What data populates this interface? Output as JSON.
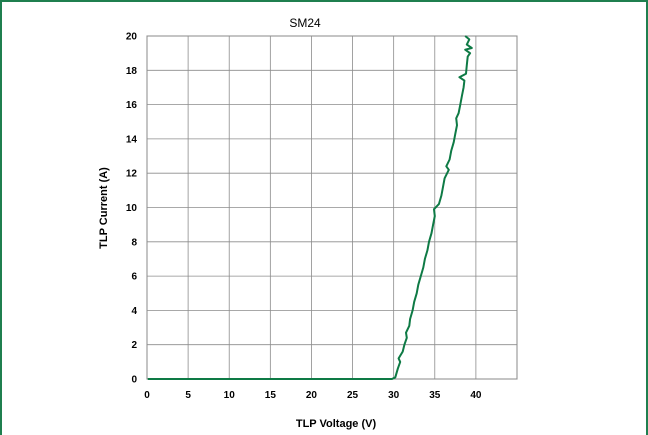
{
  "chart_data": {
    "type": "line",
    "title": "SM24",
    "xlabel": "TLP Voltage (V)",
    "ylabel": "TLP Current (A)",
    "xlim": [
      0,
      45
    ],
    "ylim": [
      0,
      20
    ],
    "xticks": [
      0,
      5,
      10,
      15,
      20,
      25,
      30,
      35,
      40
    ],
    "yticks": [
      0,
      2,
      4,
      6,
      8,
      10,
      12,
      14,
      16,
      18,
      20
    ],
    "grid": true,
    "legend": "none",
    "series": [
      {
        "color": "#0e7a45",
        "points": [
          [
            0.1,
            0.0
          ],
          [
            10,
            0.0
          ],
          [
            20,
            0.0
          ],
          [
            29.8,
            0.0
          ],
          [
            30.2,
            0.1
          ],
          [
            30.5,
            0.6
          ],
          [
            30.8,
            1.0
          ],
          [
            30.6,
            1.2
          ],
          [
            31.1,
            1.6
          ],
          [
            31.3,
            2.0
          ],
          [
            31.6,
            2.4
          ],
          [
            31.5,
            2.7
          ],
          [
            31.9,
            3.1
          ],
          [
            32.0,
            3.5
          ],
          [
            32.3,
            4.0
          ],
          [
            32.5,
            4.5
          ],
          [
            32.8,
            5.0
          ],
          [
            33.0,
            5.5
          ],
          [
            33.3,
            6.0
          ],
          [
            33.6,
            6.5
          ],
          [
            33.8,
            7.0
          ],
          [
            34.1,
            7.5
          ],
          [
            34.3,
            8.0
          ],
          [
            34.6,
            8.5
          ],
          [
            34.8,
            9.0
          ],
          [
            35.0,
            9.5
          ],
          [
            34.9,
            9.9
          ],
          [
            35.5,
            10.2
          ],
          [
            35.8,
            10.7
          ],
          [
            36.0,
            11.2
          ],
          [
            36.2,
            11.7
          ],
          [
            36.7,
            12.2
          ],
          [
            36.4,
            12.4
          ],
          [
            36.8,
            12.8
          ],
          [
            37.0,
            13.3
          ],
          [
            37.3,
            13.8
          ],
          [
            37.5,
            14.3
          ],
          [
            37.7,
            14.8
          ],
          [
            37.6,
            15.2
          ],
          [
            37.9,
            15.5
          ],
          [
            38.1,
            16.0
          ],
          [
            38.3,
            16.5
          ],
          [
            38.5,
            17.0
          ],
          [
            38.6,
            17.4
          ],
          [
            38.0,
            17.6
          ],
          [
            38.8,
            17.8
          ],
          [
            38.9,
            18.3
          ],
          [
            39.0,
            18.8
          ],
          [
            39.3,
            19.0
          ],
          [
            38.7,
            19.2
          ],
          [
            39.5,
            19.3
          ],
          [
            38.9,
            19.5
          ],
          [
            39.2,
            19.8
          ],
          [
            38.7,
            20.0
          ]
        ]
      }
    ]
  }
}
